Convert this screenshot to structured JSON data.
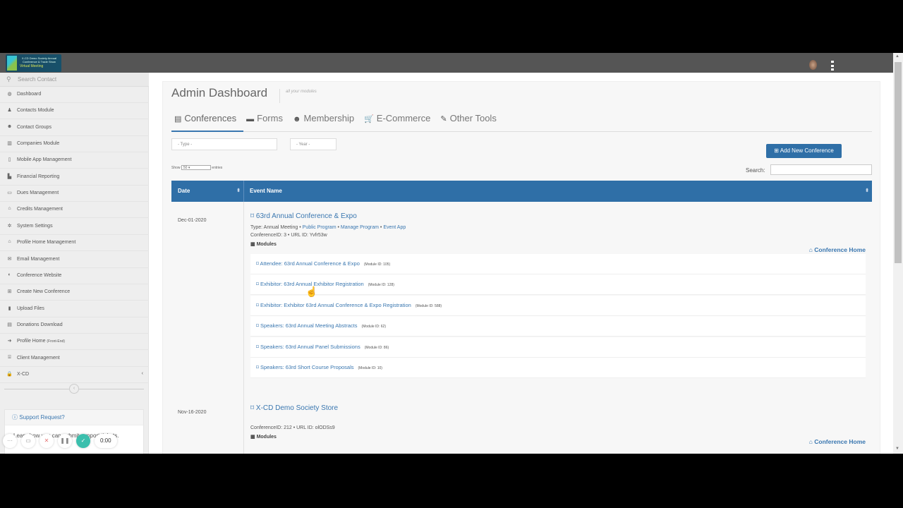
{
  "header": {
    "logo_text": "X-CD Demo Society Annual Conference & Trade Show",
    "logo_subtext": "Virtual Meeting"
  },
  "sidebar": {
    "search_placeholder": "Search Contact",
    "items": [
      {
        "label": "Dashboard",
        "icon": "dashboard-icon"
      },
      {
        "label": "Contacts Module",
        "icon": "user-icon"
      },
      {
        "label": "Contact Groups",
        "icon": "users-icon"
      },
      {
        "label": "Companies Module",
        "icon": "building-icon"
      },
      {
        "label": "Mobile App Management",
        "icon": "mobile-icon"
      },
      {
        "label": "Financial Reporting",
        "icon": "chart-icon"
      },
      {
        "label": "Dues Management",
        "icon": "money-icon"
      },
      {
        "label": "Credits Management",
        "icon": "graduation-cap-icon"
      },
      {
        "label": "System Settings",
        "icon": "gear-icon"
      },
      {
        "label": "Profile Home Management",
        "icon": "home-icon"
      },
      {
        "label": "Email Management",
        "icon": "envelope-icon"
      },
      {
        "label": "Conference Website",
        "icon": "globe-icon"
      },
      {
        "label": "Create New Conference",
        "icon": "plus-square-icon"
      },
      {
        "label": "Upload Files",
        "icon": "file-icon"
      },
      {
        "label": "Donations Download",
        "icon": "file-text-icon"
      },
      {
        "label": "Profile Home",
        "suffix": "(Front-End)",
        "icon": "sign-in-icon"
      },
      {
        "label": "Client Management",
        "icon": "bank-icon"
      },
      {
        "label": "X-CD",
        "icon": "lock-icon"
      }
    ],
    "support": {
      "title": "Support Request?",
      "text": "Learn how you can submit support tickets."
    },
    "recorder": {
      "time": "0:00"
    }
  },
  "main": {
    "title": "Admin Dashboard",
    "subtitle": "all your modules",
    "tabs": [
      {
        "label": "Conferences",
        "icon": "list-icon"
      },
      {
        "label": "Forms",
        "icon": "briefcase-icon"
      },
      {
        "label": "Membership",
        "icon": "users-icon"
      },
      {
        "label": "E-Commerce",
        "icon": "cart-icon"
      },
      {
        "label": "Other Tools",
        "icon": "wrench-icon"
      }
    ],
    "filters": {
      "type": "- Type -",
      "year": "- Year -"
    },
    "show": {
      "label_before": "Show",
      "value": "50",
      "label_after": "entries"
    },
    "add_button": "Add New Conference",
    "search_label": "Search:",
    "columns": [
      "Date",
      "Event Name"
    ],
    "events": [
      {
        "date": "Dec-01-2020",
        "name": "63rd Annual Conference & Expo",
        "type": "Type: Annual Meeting",
        "links": [
          "Public Program",
          "Manage Program",
          "Event App"
        ],
        "ids": "ConferenceID: 3 • URL ID: Yvfr53w",
        "modules_label": "Modules",
        "home_link": "Conference Home",
        "modules": [
          {
            "name": "Attendee: 63rd Annual Conference & Expo",
            "id": "(Module ID: 105)"
          },
          {
            "name": "Exhibitor: 63rd Annual Exhibitor Registration",
            "id": "(Module ID: 128)"
          },
          {
            "name": "Exhibitor: Exhibitor 63rd Annual Conference & Expo Registration",
            "id": "(Module ID: 588)"
          },
          {
            "name": "Speakers: 63rd Annual Meeting Abstracts",
            "id": "(Module ID: 62)"
          },
          {
            "name": "Speakers: 63rd Annual Panel Submissions",
            "id": "(Module ID: 86)"
          },
          {
            "name": "Speakers: 63rd Short Course Proposals",
            "id": "(Module ID: 10)"
          }
        ]
      },
      {
        "date": "Nov-16-2020",
        "name": "X-CD Demo Society Store",
        "ids": "ConferenceID: 212 • URL ID: olODSs9",
        "modules_label": "Modules",
        "home_link": "Conference Home"
      }
    ]
  },
  "colors": {
    "primary": "#2f6fa7",
    "link": "#3a77b0",
    "topbar": "#555555",
    "sidebar": "#eeeeee"
  }
}
